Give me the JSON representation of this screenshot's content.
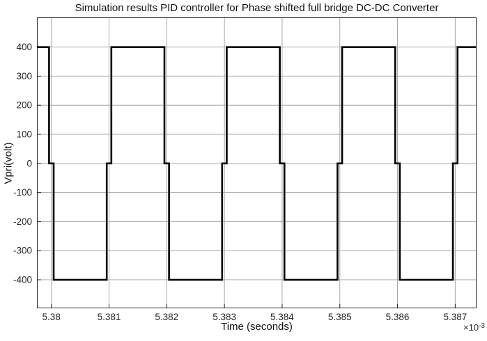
{
  "figure": {
    "background": "#ffffff"
  },
  "chart_data": {
    "type": "line",
    "title": "Simulation results PID controller for Phase shifted full bridge DC-DC Converter",
    "xlabel": "Time (seconds)",
    "ylabel": "Vpri(volt)",
    "x_multiplier": {
      "base": "×10",
      "exp": "-3"
    },
    "x_units": "×10⁻³ seconds",
    "xlim": [
      5.37975,
      5.38737
    ],
    "ylim": [
      -498,
      502
    ],
    "xticks": [
      5.38,
      5.381,
      5.382,
      5.383,
      5.384,
      5.385,
      5.386,
      5.387
    ],
    "xtick_labels": [
      "5.38",
      "5.381",
      "5.382",
      "5.383",
      "5.384",
      "5.385",
      "5.386",
      "5.387"
    ],
    "yticks": [
      -400,
      -300,
      -200,
      -100,
      0,
      100,
      200,
      300,
      400
    ],
    "ytick_labels": [
      "-400",
      "-300",
      "-200",
      "-100",
      "0",
      "100",
      "200",
      "300",
      "400"
    ],
    "grid": true,
    "legend": null,
    "styles": {
      "line_color": "#000000",
      "line_width": 2.6,
      "grid_color": "#a6a6a6",
      "axis_color": "#262626",
      "tick_label_color": "#262626",
      "tick_label_font_px": 13.5,
      "background": "#ffffff"
    },
    "series": [
      {
        "name": "Vpri",
        "waveform": "square wave +400 V / -400 V with brief 0 V dwell at each transition, period 0.002 (×10⁻³ s)",
        "x": [
          5.37975,
          5.37996,
          5.37996,
          5.38004,
          5.38004,
          5.38096,
          5.38096,
          5.38104,
          5.38104,
          5.38196,
          5.38196,
          5.38204,
          5.38204,
          5.38296,
          5.38296,
          5.38304,
          5.38304,
          5.38396,
          5.38396,
          5.38404,
          5.38404,
          5.38496,
          5.38496,
          5.38504,
          5.38504,
          5.38596,
          5.38596,
          5.38604,
          5.38604,
          5.38696,
          5.38696,
          5.38704,
          5.38704,
          5.38737
        ],
        "y": [
          400,
          400,
          0,
          0,
          -400,
          -400,
          0,
          0,
          400,
          400,
          0,
          0,
          -400,
          -400,
          0,
          0,
          400,
          400,
          0,
          0,
          -400,
          -400,
          0,
          0,
          400,
          400,
          0,
          0,
          -400,
          -400,
          0,
          0,
          400,
          400
        ]
      }
    ]
  }
}
